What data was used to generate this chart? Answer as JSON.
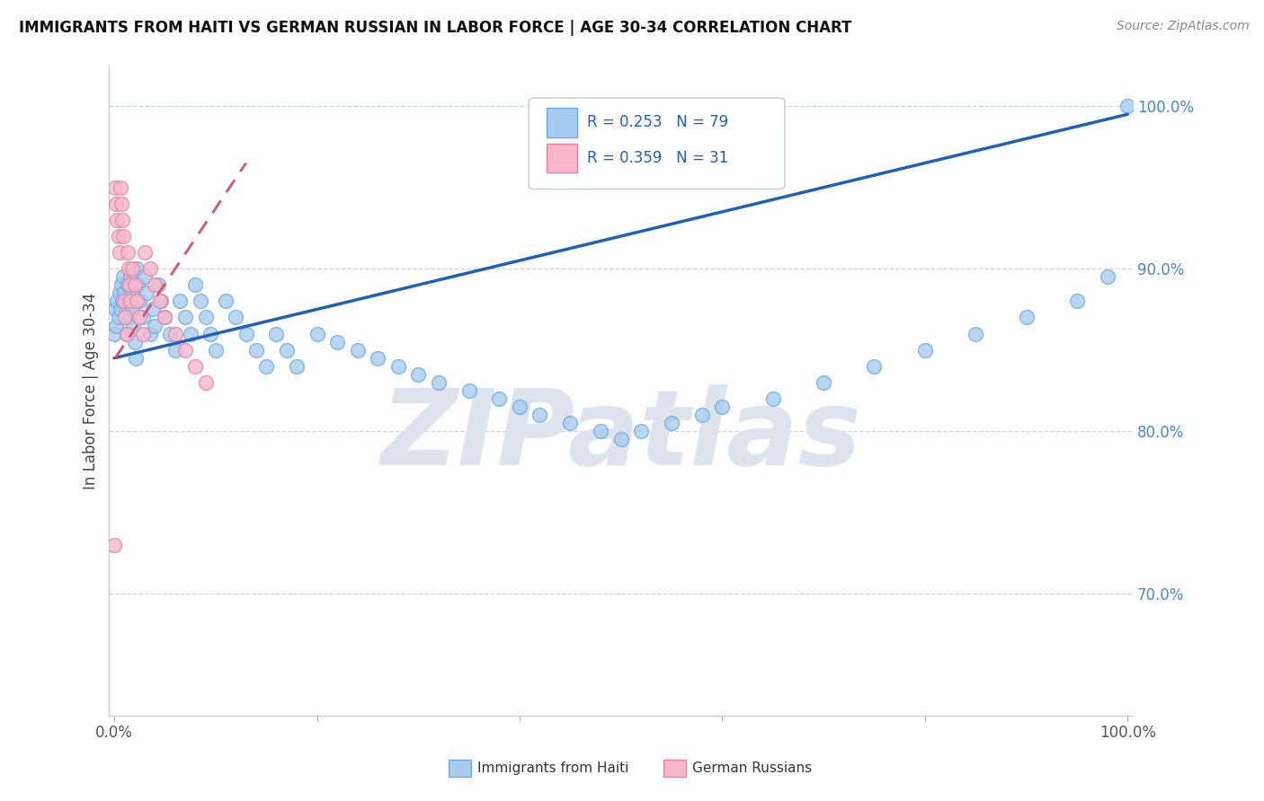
{
  "title": "IMMIGRANTS FROM HAITI VS GERMAN RUSSIAN IN LABOR FORCE | AGE 30-34 CORRELATION CHART",
  "source": "Source: ZipAtlas.com",
  "ylabel": "In Labor Force | Age 30-34",
  "legend_label1": "Immigrants from Haiti",
  "legend_label2": "German Russians",
  "R1": 0.253,
  "N1": 79,
  "R2": 0.359,
  "N2": 31,
  "color1_face": "#a8ccf0",
  "color1_edge": "#6aaae0",
  "color2_face": "#f8b8cc",
  "color2_edge": "#e880a0",
  "trendline1_color": "#2060b8",
  "trendline2_color": "#d85070",
  "axis_color": "#4488cc",
  "background_color": "#ffffff",
  "grid_color": "#c8d4e4",
  "watermark_text": "ZIPatlas",
  "watermark_color": "#dde4ee",
  "xlim": [
    -0.005,
    1.005
  ],
  "ylim": [
    0.625,
    1.025
  ],
  "ytick_vals": [
    0.7,
    0.8,
    0.9,
    1.0
  ],
  "haiti_x": [
    0.0,
    0.001,
    0.002,
    0.003,
    0.004,
    0.005,
    0.006,
    0.007,
    0.008,
    0.009,
    0.01,
    0.011,
    0.012,
    0.013,
    0.014,
    0.015,
    0.016,
    0.017,
    0.018,
    0.019,
    0.02,
    0.021,
    0.022,
    0.023,
    0.025,
    0.028,
    0.03,
    0.032,
    0.035,
    0.038,
    0.04,
    0.043,
    0.046,
    0.05,
    0.055,
    0.06,
    0.065,
    0.07,
    0.075,
    0.08,
    0.085,
    0.09,
    0.095,
    0.1,
    0.11,
    0.12,
    0.13,
    0.14,
    0.15,
    0.16,
    0.17,
    0.18,
    0.2,
    0.22,
    0.24,
    0.26,
    0.28,
    0.3,
    0.32,
    0.35,
    0.38,
    0.4,
    0.42,
    0.45,
    0.48,
    0.5,
    0.52,
    0.55,
    0.58,
    0.6,
    0.65,
    0.7,
    0.75,
    0.8,
    0.85,
    0.9,
    0.95,
    0.98,
    1.0
  ],
  "haiti_y": [
    0.86,
    0.875,
    0.865,
    0.88,
    0.87,
    0.885,
    0.875,
    0.89,
    0.88,
    0.895,
    0.885,
    0.87,
    0.86,
    0.89,
    0.88,
    0.87,
    0.895,
    0.885,
    0.875,
    0.865,
    0.855,
    0.845,
    0.9,
    0.89,
    0.88,
    0.87,
    0.895,
    0.885,
    0.86,
    0.875,
    0.865,
    0.89,
    0.88,
    0.87,
    0.86,
    0.85,
    0.88,
    0.87,
    0.86,
    0.89,
    0.88,
    0.87,
    0.86,
    0.85,
    0.88,
    0.87,
    0.86,
    0.85,
    0.84,
    0.86,
    0.85,
    0.84,
    0.86,
    0.855,
    0.85,
    0.845,
    0.84,
    0.835,
    0.83,
    0.825,
    0.82,
    0.815,
    0.81,
    0.805,
    0.8,
    0.795,
    0.8,
    0.805,
    0.81,
    0.815,
    0.82,
    0.83,
    0.84,
    0.85,
    0.86,
    0.87,
    0.88,
    0.895,
    1.0
  ],
  "german_x": [
    0.0,
    0.001,
    0.002,
    0.003,
    0.004,
    0.005,
    0.006,
    0.007,
    0.008,
    0.009,
    0.01,
    0.011,
    0.012,
    0.013,
    0.014,
    0.015,
    0.016,
    0.018,
    0.02,
    0.022,
    0.025,
    0.028,
    0.03,
    0.035,
    0.04,
    0.045,
    0.05,
    0.06,
    0.07,
    0.08,
    0.09
  ],
  "german_y": [
    0.73,
    0.95,
    0.94,
    0.93,
    0.92,
    0.91,
    0.95,
    0.94,
    0.93,
    0.92,
    0.88,
    0.87,
    0.86,
    0.91,
    0.9,
    0.89,
    0.88,
    0.9,
    0.89,
    0.88,
    0.87,
    0.86,
    0.91,
    0.9,
    0.89,
    0.88,
    0.87,
    0.86,
    0.85,
    0.84,
    0.83
  ]
}
